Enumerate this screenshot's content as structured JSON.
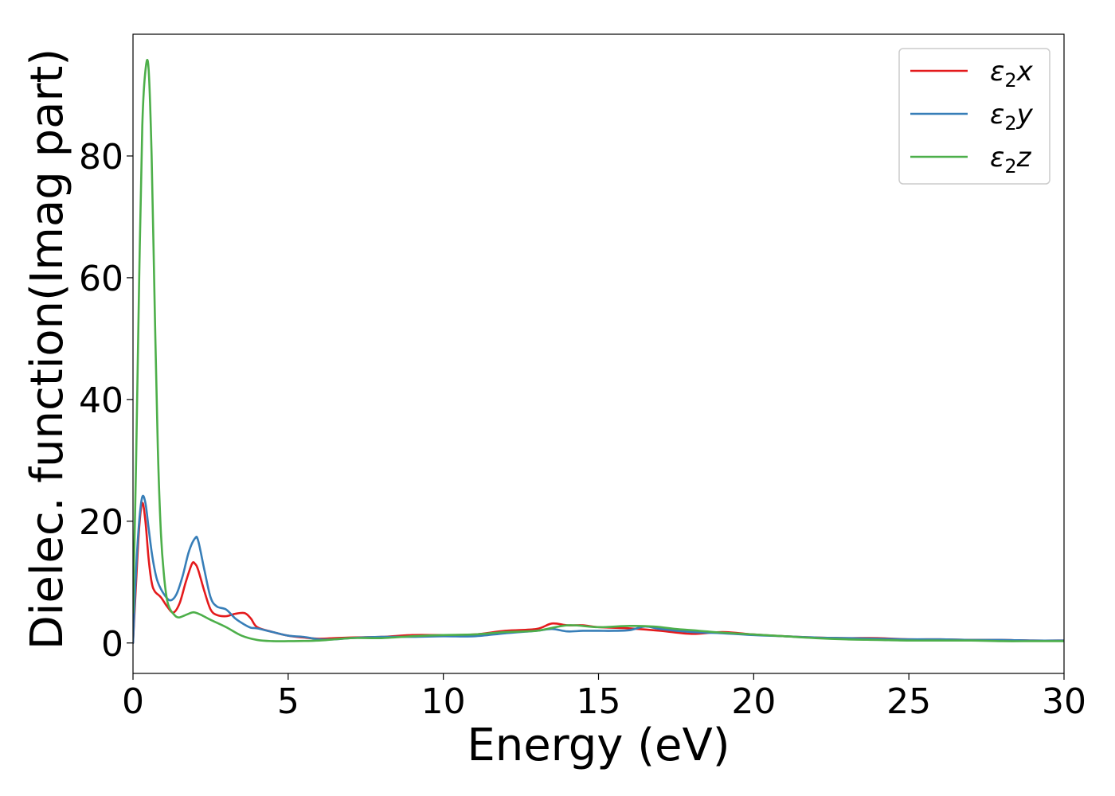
{
  "chart_data": {
    "type": "line",
    "title": "",
    "xlabel": "Energy (eV)",
    "ylabel": "Dielec. function(Imag part)",
    "xlim": [
      0,
      30
    ],
    "ylim": [
      -5,
      100
    ],
    "xticks": [
      0,
      5,
      10,
      15,
      20,
      25,
      30
    ],
    "yticks": [
      0,
      20,
      40,
      60,
      80
    ],
    "grid": false,
    "legend_position": "top-right",
    "series": [
      {
        "name": "ε₂x",
        "legend_sym": "ε",
        "legend_sub": "2",
        "legend_var": "x",
        "color": "#e41a1c",
        "x": [
          0,
          0.1,
          0.2,
          0.3,
          0.4,
          0.5,
          0.6,
          0.7,
          0.9,
          1.1,
          1.3,
          1.5,
          1.7,
          1.9,
          2.0,
          2.1,
          2.3,
          2.5,
          2.7,
          3.0,
          3.3,
          3.6,
          3.8,
          4.0,
          4.5,
          5.0,
          5.5,
          6.0,
          6.5,
          7.0,
          8.0,
          9.0,
          10.0,
          11.0,
          12.0,
          13.0,
          13.5,
          14.0,
          14.5,
          15.0,
          16.0,
          17.0,
          18.0,
          19.0,
          20.0,
          21.0,
          22.0,
          23.0,
          24.0,
          25.0,
          26.0,
          27.0,
          28.0,
          29.0,
          30.0
        ],
        "values": [
          0,
          10,
          19,
          23,
          20,
          14,
          10,
          8.5,
          7.5,
          6,
          5,
          6.5,
          10,
          13,
          13,
          12,
          8.5,
          5.5,
          4.6,
          4.4,
          4.8,
          4.9,
          4.0,
          2.6,
          1.8,
          1.2,
          0.9,
          0.7,
          0.8,
          0.9,
          1.0,
          1.3,
          1.3,
          1.4,
          2.0,
          2.3,
          3.2,
          2.9,
          2.9,
          2.6,
          2.4,
          2.0,
          1.5,
          1.8,
          1.4,
          1.1,
          0.9,
          0.8,
          0.8,
          0.6,
          0.6,
          0.5,
          0.5,
          0.4,
          0.4
        ]
      },
      {
        "name": "ε₂y",
        "legend_sym": "ε",
        "legend_sub": "2",
        "legend_var": "y",
        "color": "#377eb8",
        "x": [
          0,
          0.1,
          0.2,
          0.3,
          0.4,
          0.5,
          0.6,
          0.7,
          0.8,
          1.0,
          1.2,
          1.4,
          1.6,
          1.8,
          2.0,
          2.1,
          2.3,
          2.5,
          2.7,
          3.0,
          3.3,
          3.6,
          3.8,
          4.0,
          4.5,
          5.0,
          5.5,
          6.0,
          6.5,
          7.0,
          8.0,
          9.0,
          10.0,
          11.0,
          12.0,
          13.0,
          13.5,
          14.0,
          14.5,
          15.0,
          15.5,
          16.0,
          16.5,
          17.0,
          18.0,
          19.0,
          20.0,
          21.0,
          22.0,
          23.0,
          24.0,
          25.0,
          26.0,
          27.0,
          28.0,
          29.0,
          30.0
        ],
        "values": [
          0,
          12,
          20,
          24,
          23,
          19,
          15,
          12,
          10,
          8,
          7,
          8,
          11,
          15,
          17.2,
          16.8,
          12,
          7.5,
          6,
          5.5,
          4.0,
          3.0,
          2.5,
          2.4,
          1.8,
          1.2,
          1.0,
          0.6,
          0.6,
          0.8,
          1.0,
          1.0,
          1.1,
          1.1,
          1.6,
          2.0,
          2.3,
          1.9,
          2.0,
          2.0,
          2.0,
          2.1,
          2.7,
          2.3,
          1.8,
          1.6,
          1.3,
          1.1,
          0.9,
          0.8,
          0.7,
          0.6,
          0.6,
          0.5,
          0.5,
          0.4,
          0.4
        ]
      },
      {
        "name": "ε₂z",
        "legend_sym": "ε",
        "legend_sub": "2",
        "legend_var": "z",
        "color": "#4daf4a",
        "x": [
          0,
          0.1,
          0.2,
          0.3,
          0.4,
          0.5,
          0.6,
          0.7,
          0.8,
          0.9,
          1.0,
          1.1,
          1.2,
          1.3,
          1.4,
          1.5,
          1.7,
          1.9,
          2.0,
          2.2,
          2.5,
          3.0,
          3.5,
          4.0,
          4.5,
          5.0,
          6.0,
          7.0,
          8.0,
          9.0,
          10.0,
          11.0,
          12.0,
          13.0,
          14.0,
          15.0,
          16.0,
          16.8,
          17.5,
          18.0,
          19.0,
          20.0,
          21.0,
          22.0,
          23.0,
          24.0,
          25.0,
          26.0,
          27.0,
          28.0,
          29.0,
          30.0
        ],
        "values": [
          5,
          30,
          60,
          85,
          94,
          94.5,
          80,
          55,
          32,
          18,
          11,
          7,
          5.5,
          4.8,
          4.3,
          4.2,
          4.6,
          5.0,
          5.0,
          4.6,
          3.8,
          2.6,
          1.2,
          0.5,
          0.3,
          0.3,
          0.4,
          0.8,
          0.8,
          1.1,
          1.3,
          1.4,
          1.8,
          2.0,
          2.9,
          2.6,
          2.8,
          2.7,
          2.3,
          2.1,
          1.7,
          1.4,
          1.1,
          0.8,
          0.6,
          0.5,
          0.4,
          0.4,
          0.4,
          0.3,
          0.3,
          0.3
        ]
      }
    ]
  }
}
